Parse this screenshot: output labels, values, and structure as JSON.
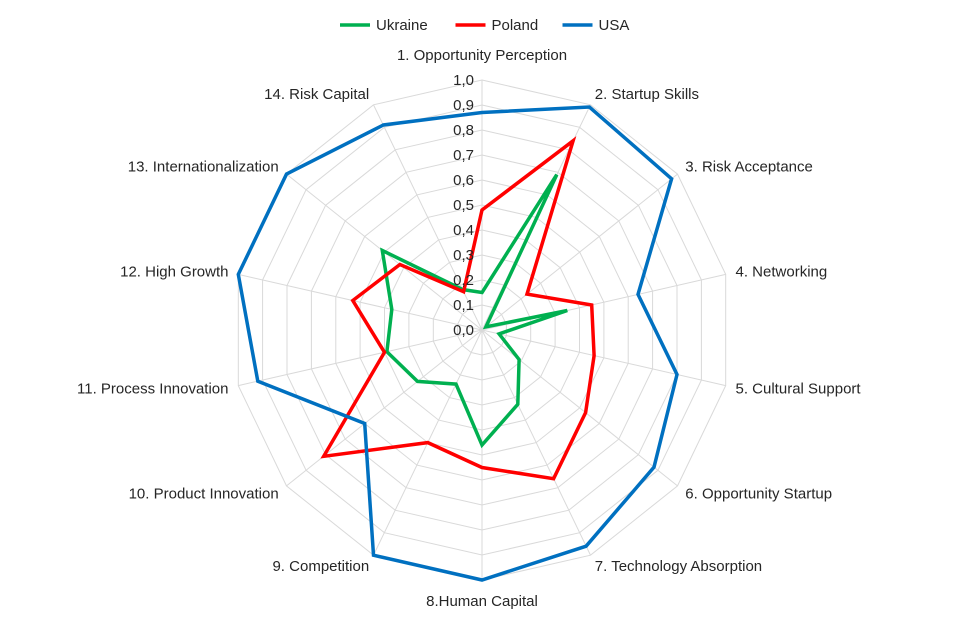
{
  "chart_data": {
    "type": "radar",
    "categories": [
      "1. Opportunity Perception",
      "2. Startup Skills",
      "3. Risk Acceptance",
      "4. Networking",
      "5. Cultural Support",
      "6. Opportunity Startup",
      "7. Technology Absorption",
      "8.Human Capital",
      "9. Competition",
      "10. Product Innovation",
      "11. Process Innovation",
      "12. High Growth",
      "13. Internationalization",
      "14. Risk Capital"
    ],
    "ticks": [
      "0,0",
      "0,1",
      "0,2",
      "0,3",
      "0,4",
      "0,5",
      "0,6",
      "0,7",
      "0,8",
      "0,9",
      "1,0"
    ],
    "rlim": [
      0,
      1
    ],
    "grid": true,
    "legend_position": "top",
    "series": [
      {
        "name": "Ukraine",
        "color": "#00b050",
        "values": [
          0.15,
          0.69,
          0.02,
          0.35,
          0.07,
          0.19,
          0.33,
          0.46,
          0.24,
          0.33,
          0.39,
          0.37,
          0.51,
          0.18
        ]
      },
      {
        "name": "Poland",
        "color": "#ff0000",
        "values": [
          0.48,
          0.84,
          0.23,
          0.45,
          0.46,
          0.53,
          0.66,
          0.55,
          0.5,
          0.81,
          0.4,
          0.53,
          0.42,
          0.17
        ]
      },
      {
        "name": "USA",
        "color": "#0070c0",
        "values": [
          0.87,
          0.99,
          0.97,
          0.64,
          0.8,
          0.88,
          0.96,
          1.0,
          1.0,
          0.6,
          0.92,
          1.0,
          1.0,
          0.91
        ]
      }
    ]
  }
}
